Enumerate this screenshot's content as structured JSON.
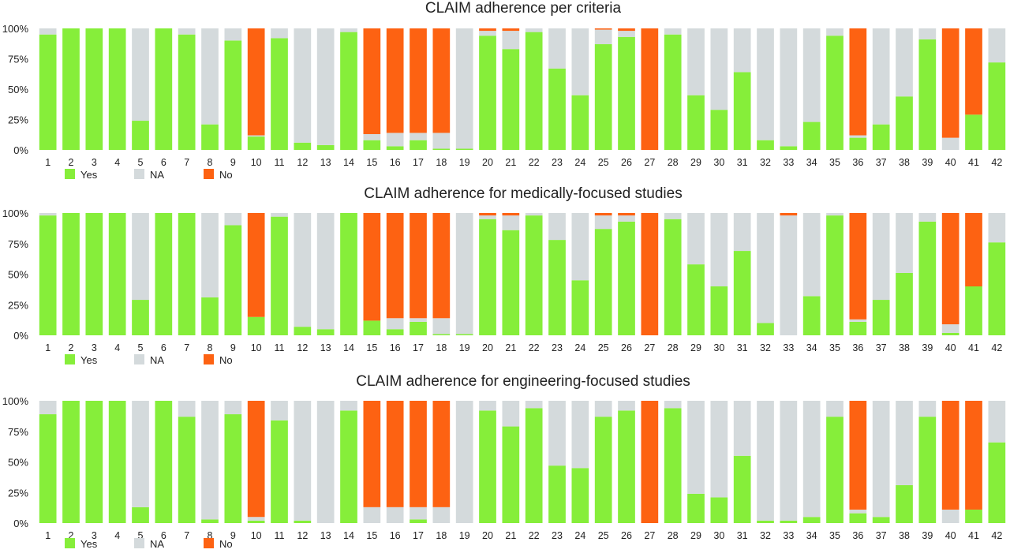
{
  "colors": {
    "Yes": "#86ee3a",
    "NA": "#d4dadc",
    "No": "#fd6212"
  },
  "chart_data": [
    {
      "type": "bar",
      "stacked": true,
      "percent": true,
      "title": "CLAIM adherence per criteria",
      "categories": [
        "1",
        "2",
        "3",
        "4",
        "5",
        "6",
        "7",
        "8",
        "9",
        "10",
        "11",
        "12",
        "13",
        "14",
        "15",
        "16",
        "17",
        "18",
        "19",
        "20",
        "21",
        "22",
        "23",
        "24",
        "25",
        "26",
        "27",
        "28",
        "29",
        "30",
        "31",
        "32",
        "33",
        "34",
        "35",
        "36",
        "37",
        "38",
        "39",
        "40",
        "41",
        "42"
      ],
      "ylim": [
        0,
        100
      ],
      "yticks": [
        "0%",
        "25%",
        "50%",
        "75%",
        "100%"
      ],
      "legend": [
        "Yes",
        "NA",
        "No"
      ],
      "legend_position": "bottom-left",
      "series": [
        {
          "name": "Yes",
          "values": [
            95,
            100,
            100,
            100,
            24,
            100,
            95,
            21,
            90,
            11,
            92,
            6,
            4,
            97,
            8,
            3,
            8,
            1,
            1,
            94,
            83,
            97,
            67,
            45,
            87,
            93,
            0,
            95,
            45,
            33,
            64,
            8,
            3,
            23,
            94,
            10,
            21,
            44,
            91,
            0,
            29,
            72
          ]
        },
        {
          "name": "NA",
          "values": [
            5,
            0,
            0,
            0,
            76,
            0,
            5,
            79,
            10,
            1,
            8,
            94,
            96,
            3,
            5,
            11,
            6,
            13,
            99,
            4,
            15,
            3,
            33,
            55,
            12,
            5,
            0,
            5,
            55,
            67,
            36,
            92,
            97,
            77,
            6,
            2,
            79,
            56,
            9,
            10,
            0,
            28
          ]
        },
        {
          "name": "No",
          "values": [
            0,
            0,
            0,
            0,
            0,
            0,
            0,
            0,
            0,
            88,
            0,
            0,
            0,
            0,
            87,
            86,
            86,
            86,
            0,
            2,
            2,
            0,
            0,
            0,
            1,
            2,
            100,
            0,
            0,
            0,
            0,
            0,
            0,
            0,
            0,
            88,
            0,
            0,
            0,
            90,
            71,
            0
          ]
        }
      ]
    },
    {
      "type": "bar",
      "stacked": true,
      "percent": true,
      "title": "CLAIM adherence for medically-focused studies",
      "categories": [
        "1",
        "2",
        "3",
        "4",
        "5",
        "6",
        "7",
        "8",
        "9",
        "10",
        "11",
        "12",
        "13",
        "14",
        "15",
        "16",
        "17",
        "18",
        "19",
        "20",
        "21",
        "22",
        "23",
        "24",
        "25",
        "26",
        "27",
        "28",
        "29",
        "30",
        "31",
        "32",
        "33",
        "34",
        "35",
        "36",
        "37",
        "38",
        "39",
        "40",
        "41",
        "42"
      ],
      "ylim": [
        0,
        100
      ],
      "yticks": [
        "0%",
        "25%",
        "50%",
        "75%",
        "100%"
      ],
      "legend": [
        "Yes",
        "NA",
        "No"
      ],
      "legend_position": "bottom-left",
      "series": [
        {
          "name": "Yes",
          "values": [
            98,
            100,
            100,
            100,
            29,
            100,
            100,
            31,
            90,
            15,
            97,
            7,
            5,
            100,
            12,
            5,
            11,
            1,
            1,
            95,
            86,
            98,
            78,
            45,
            87,
            93,
            0,
            95,
            58,
            40,
            69,
            10,
            0,
            32,
            98,
            11,
            29,
            51,
            93,
            2,
            40,
            76
          ]
        },
        {
          "name": "NA",
          "values": [
            2,
            0,
            0,
            0,
            71,
            0,
            0,
            69,
            10,
            0,
            3,
            93,
            95,
            0,
            0,
            9,
            3,
            13,
            99,
            3,
            12,
            2,
            22,
            55,
            11,
            5,
            0,
            5,
            42,
            60,
            31,
            90,
            98,
            68,
            2,
            2,
            71,
            49,
            7,
            7,
            0,
            24
          ]
        },
        {
          "name": "No",
          "values": [
            0,
            0,
            0,
            0,
            0,
            0,
            0,
            0,
            0,
            85,
            0,
            0,
            0,
            0,
            88,
            86,
            86,
            86,
            0,
            2,
            2,
            0,
            0,
            0,
            2,
            2,
            100,
            0,
            0,
            0,
            0,
            0,
            2,
            0,
            0,
            87,
            0,
            0,
            0,
            91,
            60,
            0
          ]
        }
      ]
    },
    {
      "type": "bar",
      "stacked": true,
      "percent": true,
      "title": "CLAIM adherence for engineering-focused studies",
      "categories": [
        "1",
        "2",
        "3",
        "4",
        "5",
        "6",
        "7",
        "8",
        "9",
        "10",
        "11",
        "12",
        "13",
        "14",
        "15",
        "16",
        "17",
        "18",
        "19",
        "20",
        "21",
        "22",
        "23",
        "24",
        "25",
        "26",
        "27",
        "28",
        "29",
        "30",
        "31",
        "32",
        "33",
        "34",
        "35",
        "36",
        "37",
        "38",
        "39",
        "40",
        "41",
        "42"
      ],
      "ylim": [
        0,
        100
      ],
      "yticks": [
        "0%",
        "25%",
        "50%",
        "75%",
        "100%"
      ],
      "legend": [
        "Yes",
        "NA",
        "No"
      ],
      "legend_position": "bottom-left",
      "series": [
        {
          "name": "Yes",
          "values": [
            89,
            100,
            100,
            100,
            13,
            100,
            87,
            3,
            89,
            2,
            84,
            2,
            0,
            92,
            0,
            0,
            3,
            0,
            0,
            92,
            79,
            94,
            47,
            45,
            87,
            92,
            0,
            94,
            24,
            21,
            55,
            2,
            2,
            5,
            87,
            8,
            5,
            31,
            87,
            0,
            11,
            66
          ]
        },
        {
          "name": "NA",
          "values": [
            11,
            0,
            0,
            0,
            87,
            0,
            13,
            97,
            11,
            3,
            16,
            98,
            100,
            8,
            13,
            13,
            10,
            13,
            100,
            8,
            21,
            6,
            53,
            55,
            13,
            8,
            0,
            6,
            76,
            79,
            45,
            98,
            98,
            95,
            13,
            3,
            95,
            69,
            13,
            11,
            0,
            34
          ]
        },
        {
          "name": "No",
          "values": [
            0,
            0,
            0,
            0,
            0,
            0,
            0,
            0,
            0,
            95,
            0,
            0,
            0,
            0,
            87,
            87,
            87,
            87,
            0,
            0,
            0,
            0,
            0,
            0,
            0,
            0,
            100,
            0,
            0,
            0,
            0,
            0,
            0,
            0,
            0,
            89,
            0,
            0,
            0,
            89,
            89,
            0
          ]
        }
      ]
    }
  ]
}
